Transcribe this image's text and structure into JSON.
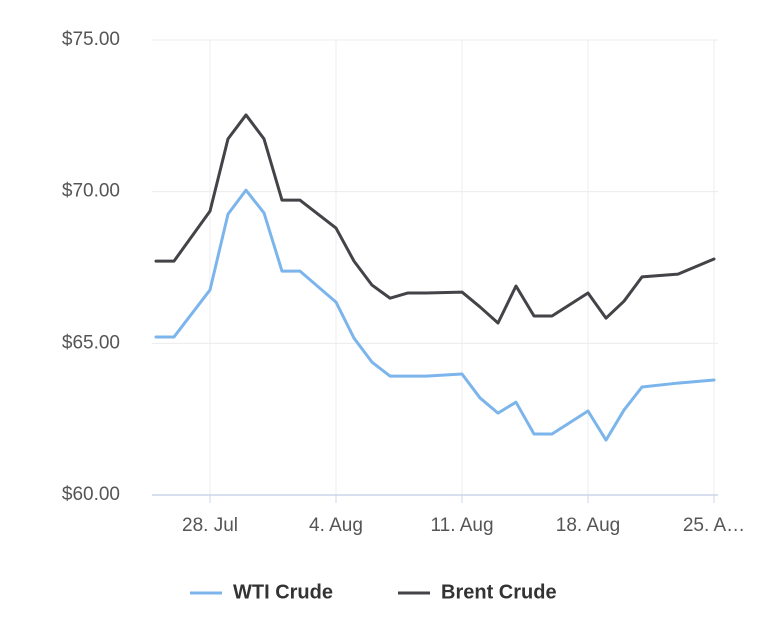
{
  "chart_data": {
    "type": "line",
    "x": [
      "07-25",
      "07-26",
      "07-28",
      "07-29",
      "07-30",
      "07-31",
      "08-01",
      "08-02",
      "08-04",
      "08-05",
      "08-06",
      "08-07",
      "08-08",
      "08-09",
      "08-11",
      "08-12",
      "08-13",
      "08-14",
      "08-15",
      "08-16",
      "08-18",
      "08-19",
      "08-20",
      "08-21",
      "08-23",
      "08-25"
    ],
    "series": [
      {
        "name": "WTI Crude",
        "color": "#7cb5ec",
        "values": [
          65.21,
          65.21,
          66.76,
          69.26,
          70.05,
          69.3,
          67.38,
          67.38,
          66.36,
          65.17,
          64.38,
          63.92,
          63.92,
          63.92,
          63.99,
          63.2,
          62.7,
          63.06,
          62.01,
          62.01,
          62.77,
          61.81,
          62.8,
          63.56,
          63.69,
          63.79
        ]
      },
      {
        "name": "Brent Crude",
        "color": "#434348",
        "values": [
          67.71,
          67.71,
          69.36,
          71.74,
          72.53,
          71.74,
          69.72,
          69.72,
          68.8,
          67.71,
          66.92,
          66.49,
          66.66,
          66.66,
          66.69,
          66.2,
          65.67,
          66.89,
          65.9,
          65.9,
          66.66,
          65.83,
          66.39,
          67.19,
          67.28,
          67.78
        ]
      }
    ],
    "xlim": [
      "07-25",
      "08-25"
    ],
    "xticks": [
      {
        "value": "07-28",
        "label": "28. Jul"
      },
      {
        "value": "08-04",
        "label": "4. Aug"
      },
      {
        "value": "08-11",
        "label": "11. Aug"
      },
      {
        "value": "08-18",
        "label": "18. Aug"
      },
      {
        "value": "08-25",
        "label": "25. A…"
      }
    ],
    "ylim": [
      60,
      75
    ],
    "yticks": [
      {
        "value": 60,
        "label": "$60.00"
      },
      {
        "value": 65,
        "label": "$65.00"
      },
      {
        "value": 70,
        "label": "$70.00"
      },
      {
        "value": 75,
        "label": "$75.00"
      }
    ],
    "grid": true
  }
}
